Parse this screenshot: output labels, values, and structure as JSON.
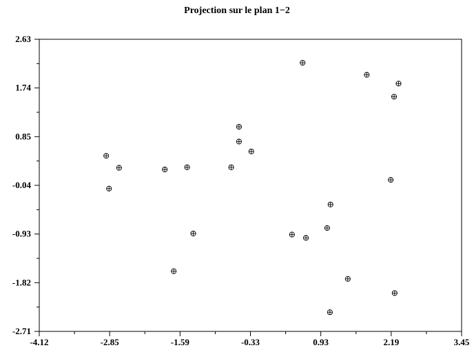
{
  "chart_data": {
    "type": "scatter",
    "title": "Projection sur le plan 1−2",
    "xlabel": "",
    "ylabel": "",
    "xlim": [
      -4.12,
      3.45
    ],
    "ylim": [
      -2.71,
      2.63
    ],
    "x_ticks": [
      "-4.12",
      "-2.85",
      "-1.59",
      "-0.33",
      "0.93",
      "2.19",
      "3.45"
    ],
    "y_ticks": [
      "2.63",
      "1.74",
      "0.85",
      "-0.04",
      "-0.93",
      "-1.82",
      "-2.71"
    ],
    "marker": "circled-plus",
    "grid": false,
    "points": [
      {
        "x": 0.6,
        "y": 2.2
      },
      {
        "x": 1.75,
        "y": 1.98
      },
      {
        "x": 2.32,
        "y": 1.82
      },
      {
        "x": 2.24,
        "y": 1.58
      },
      {
        "x": -0.54,
        "y": 1.03
      },
      {
        "x": -0.54,
        "y": 0.76
      },
      {
        "x": -0.32,
        "y": 0.58
      },
      {
        "x": -2.92,
        "y": 0.5
      },
      {
        "x": -2.69,
        "y": 0.28
      },
      {
        "x": -1.87,
        "y": 0.25
      },
      {
        "x": -1.47,
        "y": 0.29
      },
      {
        "x": -0.68,
        "y": 0.29
      },
      {
        "x": -2.87,
        "y": -0.1
      },
      {
        "x": 2.18,
        "y": 0.06
      },
      {
        "x": 1.1,
        "y": -0.39
      },
      {
        "x": 1.04,
        "y": -0.82
      },
      {
        "x": 0.41,
        "y": -0.94
      },
      {
        "x": 0.66,
        "y": -1.0
      },
      {
        "x": -1.36,
        "y": -0.92
      },
      {
        "x": -1.71,
        "y": -1.61
      },
      {
        "x": 1.41,
        "y": -1.75
      },
      {
        "x": 2.25,
        "y": -2.01
      },
      {
        "x": 1.09,
        "y": -2.36
      }
    ]
  }
}
